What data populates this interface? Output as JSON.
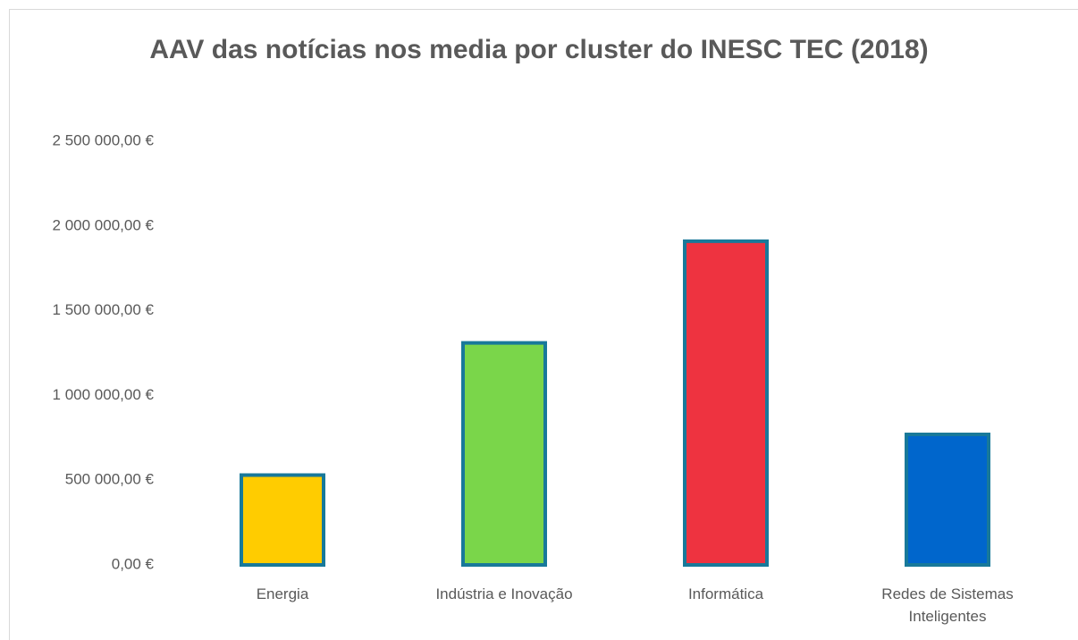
{
  "chart_data": {
    "type": "bar",
    "title": "AAV das notícias nos media por cluster do INESC TEC (2018)",
    "categories": [
      "Energia",
      "Indústria e Inovação",
      "Informática",
      "Redes de Sistemas Inteligentes"
    ],
    "values": [
      530000,
      1310000,
      1910000,
      770000
    ],
    "colors": [
      "#ffcc00",
      "#7ad64a",
      "#ee3340",
      "#0066cc"
    ],
    "edge_color": "#18799a",
    "ylim": [
      0,
      2500000
    ],
    "yticks": [
      {
        "value": 0,
        "label": "0,00 €"
      },
      {
        "value": 500000,
        "label": "500 000,00 €"
      },
      {
        "value": 1000000,
        "label": "1 000 000,00 €"
      },
      {
        "value": 1500000,
        "label": "1 500 000,00 €"
      },
      {
        "value": 2000000,
        "label": "2 000 000,00 €"
      },
      {
        "value": 2500000,
        "label": "2 500 000,00 €"
      }
    ],
    "grid": false
  }
}
